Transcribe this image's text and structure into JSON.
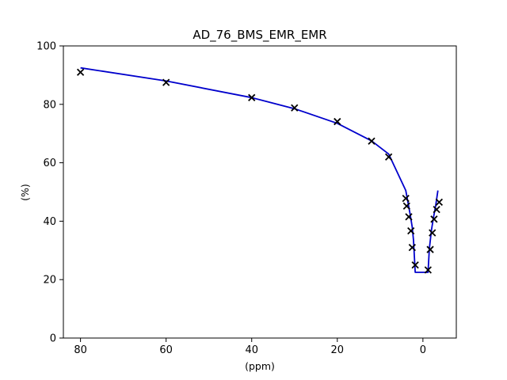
{
  "chart_data": {
    "type": "line",
    "title": "AD_76_BMS_EMR_EMR",
    "xlabel": "(ppm)",
    "ylabel": "(%)",
    "xlim": [
      84,
      -7.8
    ],
    "ylim": [
      0,
      100
    ],
    "x_ticks": [
      80,
      60,
      40,
      20,
      0
    ],
    "y_ticks": [
      0,
      20,
      40,
      60,
      80,
      100
    ],
    "x_tick_labels": [
      "80",
      "60",
      "40",
      "20",
      "0"
    ],
    "y_tick_labels": [
      "0",
      "20",
      "40",
      "60",
      "80",
      "100"
    ],
    "grid": false,
    "series": [
      {
        "kind": "line",
        "color": "#0000cc",
        "x": [
          80,
          60,
          40,
          30,
          20,
          12,
          8,
          4,
          3.5,
          3,
          2.5,
          2.2,
          1.8,
          -1.2,
          -1.5,
          -2,
          -2.5,
          -3,
          -3.5
        ],
        "y": [
          92.5,
          88,
          82.3,
          78.5,
          73.5,
          67.5,
          63,
          50.5,
          46.5,
          42.5,
          38,
          33.5,
          22.5,
          22.5,
          30.5,
          37,
          41.5,
          45.5,
          50.5
        ]
      },
      {
        "kind": "scatter",
        "marker": "x",
        "color": "#000000",
        "x": [
          80,
          60,
          40,
          30,
          20,
          12,
          8,
          4,
          3.8,
          3.3,
          2.8,
          2.5,
          1.8,
          -1.2,
          -1.7,
          -2.2,
          -2.6,
          -3.2,
          -3.8
        ],
        "y": [
          91,
          87.5,
          82.3,
          78.8,
          74.1,
          67.4,
          62,
          47.8,
          45.2,
          41.5,
          36.7,
          31,
          25,
          23.3,
          30.3,
          36,
          40.7,
          44,
          46.5
        ]
      }
    ]
  }
}
